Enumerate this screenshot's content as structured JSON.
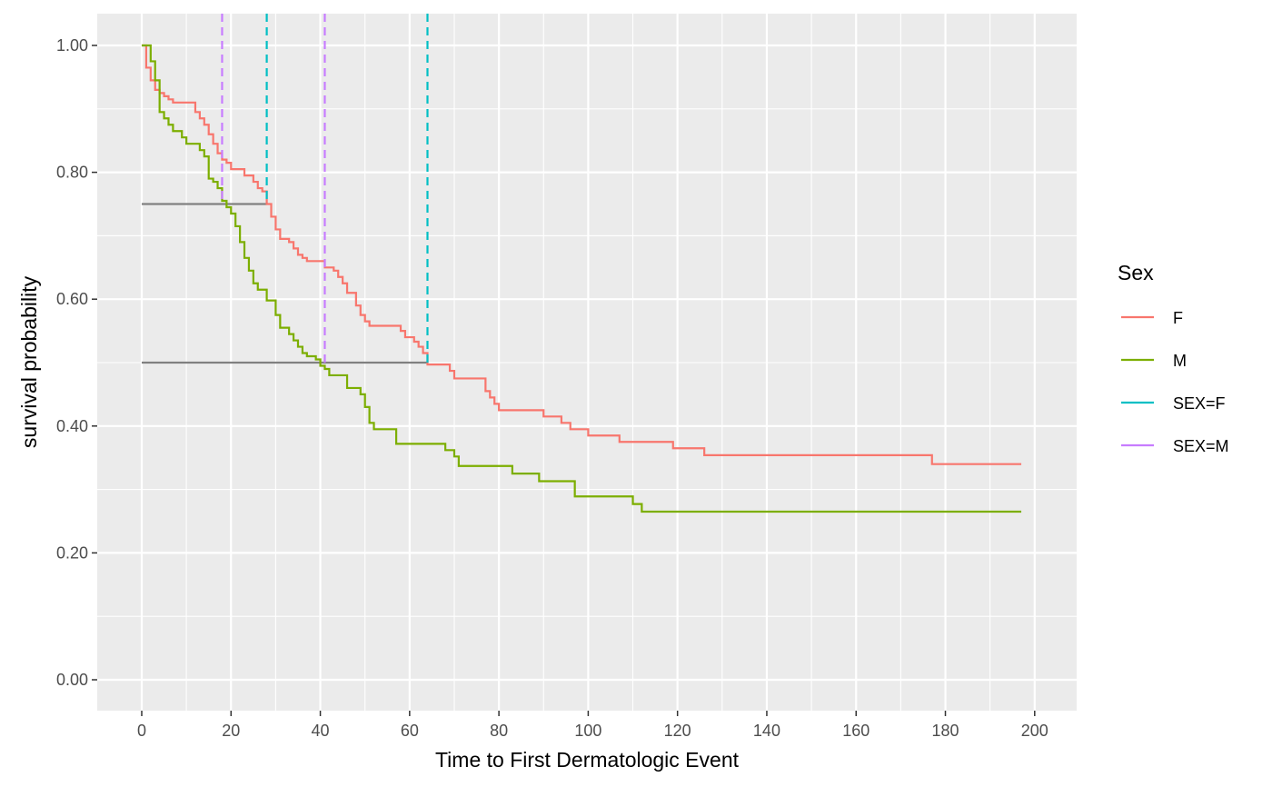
{
  "chart_data": {
    "type": "line",
    "subtype": "kaplan-meier step survival curves",
    "xlabel": "Time to First Dermatologic Event",
    "ylabel": "survival probability",
    "xlim": [
      -10,
      209
    ],
    "ylim": [
      -0.05,
      1.05
    ],
    "x_ticks": [
      0,
      20,
      40,
      60,
      80,
      100,
      120,
      140,
      160,
      180,
      200
    ],
    "x_tick_labels": [
      "0",
      "20",
      "40",
      "60",
      "80",
      "100",
      "120",
      "140",
      "160",
      "180",
      "200"
    ],
    "y_ticks": [
      0,
      0.2,
      0.4,
      0.6,
      0.8,
      1.0
    ],
    "y_tick_labels": [
      "0.00",
      "0.20",
      "0.40",
      "0.60",
      "0.80",
      "1.00"
    ],
    "grid": true,
    "background": "#ebebeb",
    "legend": {
      "title": "Sex",
      "placement": "right",
      "entries": [
        {
          "label": "F",
          "color": "#F8766D",
          "dashed": false
        },
        {
          "label": "M",
          "color": "#7CAE00",
          "dashed": false
        },
        {
          "label": "SEX=F",
          "color": "#00BFC4",
          "dashed": true
        },
        {
          "label": "SEX=M",
          "color": "#C77CFF",
          "dashed": true
        }
      ]
    },
    "series": [
      {
        "name": "F",
        "color": "#F8766D",
        "points": [
          [
            0,
            1.0
          ],
          [
            1,
            0.965
          ],
          [
            2,
            0.945
          ],
          [
            3,
            0.93
          ],
          [
            4,
            0.925
          ],
          [
            5,
            0.92
          ],
          [
            6,
            0.915
          ],
          [
            7,
            0.91
          ],
          [
            12,
            0.895
          ],
          [
            13,
            0.885
          ],
          [
            14,
            0.875
          ],
          [
            15,
            0.86
          ],
          [
            16,
            0.845
          ],
          [
            17,
            0.83
          ],
          [
            18,
            0.82
          ],
          [
            19,
            0.815
          ],
          [
            20,
            0.805
          ],
          [
            23,
            0.795
          ],
          [
            25,
            0.785
          ],
          [
            26,
            0.775
          ],
          [
            27,
            0.77
          ],
          [
            28,
            0.75
          ],
          [
            29,
            0.73
          ],
          [
            30,
            0.71
          ],
          [
            31,
            0.695
          ],
          [
            33,
            0.69
          ],
          [
            34,
            0.68
          ],
          [
            35,
            0.67
          ],
          [
            36,
            0.665
          ],
          [
            37,
            0.66
          ],
          [
            41,
            0.65
          ],
          [
            43,
            0.645
          ],
          [
            44,
            0.635
          ],
          [
            45,
            0.625
          ],
          [
            46,
            0.61
          ],
          [
            48,
            0.59
          ],
          [
            49,
            0.575
          ],
          [
            50,
            0.565
          ],
          [
            51,
            0.558
          ],
          [
            58,
            0.55
          ],
          [
            59,
            0.54
          ],
          [
            61,
            0.533
          ],
          [
            62,
            0.525
          ],
          [
            63,
            0.515
          ],
          [
            64,
            0.497
          ],
          [
            69,
            0.487
          ],
          [
            70,
            0.475
          ],
          [
            77,
            0.455
          ],
          [
            78,
            0.445
          ],
          [
            79,
            0.435
          ],
          [
            80,
            0.425
          ],
          [
            90,
            0.415
          ],
          [
            94,
            0.405
          ],
          [
            96,
            0.395
          ],
          [
            100,
            0.385
          ],
          [
            107,
            0.375
          ],
          [
            119,
            0.365
          ],
          [
            126,
            0.354
          ],
          [
            177,
            0.34
          ],
          [
            197,
            0.34
          ]
        ]
      },
      {
        "name": "M",
        "color": "#7CAE00",
        "points": [
          [
            0,
            1.0
          ],
          [
            2,
            0.975
          ],
          [
            3,
            0.945
          ],
          [
            4,
            0.895
          ],
          [
            5,
            0.885
          ],
          [
            6,
            0.875
          ],
          [
            7,
            0.865
          ],
          [
            9,
            0.855
          ],
          [
            10,
            0.845
          ],
          [
            13,
            0.835
          ],
          [
            14,
            0.825
          ],
          [
            15,
            0.79
          ],
          [
            16,
            0.785
          ],
          [
            17,
            0.775
          ],
          [
            18,
            0.755
          ],
          [
            19,
            0.745
          ],
          [
            20,
            0.735
          ],
          [
            21,
            0.715
          ],
          [
            22,
            0.69
          ],
          [
            23,
            0.665
          ],
          [
            24,
            0.645
          ],
          [
            25,
            0.625
          ],
          [
            26,
            0.615
          ],
          [
            28,
            0.598
          ],
          [
            30,
            0.575
          ],
          [
            31,
            0.555
          ],
          [
            33,
            0.545
          ],
          [
            34,
            0.535
          ],
          [
            35,
            0.525
          ],
          [
            36,
            0.515
          ],
          [
            37,
            0.51
          ],
          [
            39,
            0.505
          ],
          [
            40,
            0.495
          ],
          [
            41,
            0.49
          ],
          [
            42,
            0.48
          ],
          [
            46,
            0.46
          ],
          [
            49,
            0.45
          ],
          [
            50,
            0.43
          ],
          [
            51,
            0.405
          ],
          [
            52,
            0.395
          ],
          [
            57,
            0.372
          ],
          [
            68,
            0.362
          ],
          [
            70,
            0.352
          ],
          [
            71,
            0.337
          ],
          [
            83,
            0.325
          ],
          [
            89,
            0.313
          ],
          [
            97,
            0.289
          ],
          [
            110,
            0.277
          ],
          [
            112,
            0.265
          ],
          [
            197,
            0.265
          ]
        ]
      }
    ],
    "median_reference_lines": [
      {
        "group": "F",
        "probability": 0.75,
        "time": 28
      },
      {
        "group": "F",
        "probability": 0.5,
        "time": 64
      },
      {
        "group": "M",
        "probability": 0.75,
        "time": 18
      },
      {
        "group": "M",
        "probability": 0.5,
        "time": 41
      }
    ],
    "dashed_verticals": [
      {
        "label": "SEX=F",
        "color": "#00BFC4",
        "x": 28,
        "y_from": 0.75
      },
      {
        "label": "SEX=F",
        "color": "#00BFC4",
        "x": 64,
        "y_from": 0.5
      },
      {
        "label": "SEX=M",
        "color": "#C77CFF",
        "x": 18,
        "y_from": 0.75
      },
      {
        "label": "SEX=M",
        "color": "#C77CFF",
        "x": 41,
        "y_from": 0.5
      }
    ],
    "horizontal_guides": [
      {
        "y": 0.75,
        "x_to": 28,
        "color": "#808080"
      },
      {
        "y": 0.5,
        "x_to": 64,
        "color": "#808080"
      }
    ]
  }
}
